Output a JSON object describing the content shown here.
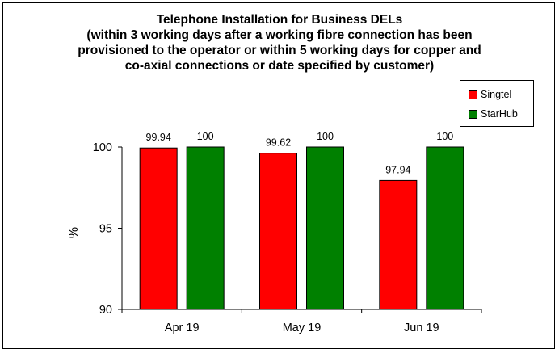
{
  "chart_data": {
    "type": "bar",
    "title_lines": [
      "Telephone Installation for Business DELs",
      "(within 3 working days after a working fibre connection has been",
      "provisioned to the operator or within 5 working days for copper and",
      "co-axial connections or date specified by customer)"
    ],
    "categories": [
      "Apr 19",
      "May 19",
      "Jun 19"
    ],
    "series": [
      {
        "name": "Singtel",
        "values": [
          99.94,
          99.62,
          97.94
        ],
        "value_labels": [
          "99.94",
          "99.62",
          "97.94"
        ],
        "color": "#ff0000"
      },
      {
        "name": "StarHub",
        "values": [
          100,
          100,
          100
        ],
        "value_labels": [
          "100",
          "100",
          "100"
        ],
        "color": "#008000"
      }
    ],
    "ylabel": "%",
    "ylim": [
      90,
      100
    ],
    "yticks": [
      90,
      95,
      100
    ],
    "grid": false,
    "legend_position": "right"
  }
}
